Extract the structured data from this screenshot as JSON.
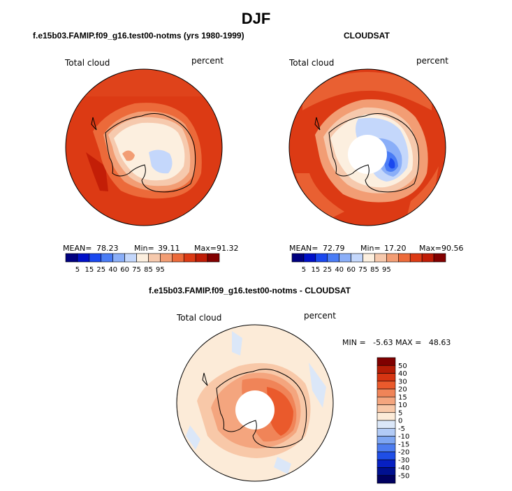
{
  "figure": {
    "title": "DJF"
  },
  "panels": {
    "left": {
      "title": "f.e15b03.FAMIP.f09_g16.test00-notms (yrs 1980-1999)",
      "variable": "Total cloud",
      "units": "percent",
      "mean_label": "MEAN=",
      "mean": "78.23",
      "min_label": "Min=",
      "min": "39.11",
      "max_label": "Max=",
      "max": "91.32"
    },
    "right": {
      "title": "CLOUDSAT",
      "variable": "Total cloud",
      "units": "percent",
      "mean_label": "MEAN=",
      "mean": "72.79",
      "min_label": "Min=",
      "min": "17.20",
      "max_label": "Max=",
      "max": "90.56"
    },
    "diff": {
      "title": "f.e15b03.FAMIP.f09_g16.test00-notms - CLOUDSAT",
      "variable": "Total cloud",
      "units": "percent",
      "minmax": "MIN =   -5.63 MAX =   48.63"
    }
  },
  "colorbar_abs": {
    "labels": [
      "5",
      "15",
      "25",
      "40",
      "60",
      "75",
      "85",
      "95"
    ],
    "colors": [
      "#00007f",
      "#0010c8",
      "#1a48ef",
      "#4a7cf5",
      "#8aaef8",
      "#c4d7fb",
      "#fcefdf",
      "#f6c9ad",
      "#f29d74",
      "#ec6a3a",
      "#dc3a14",
      "#c01c06",
      "#820000"
    ]
  },
  "colorbar_diff": {
    "labels": [
      "50",
      "40",
      "30",
      "20",
      "15",
      "10",
      "5",
      "0",
      "-5",
      "-10",
      "-15",
      "-20",
      "-30",
      "-40",
      "-50"
    ],
    "colors": [
      "#800000",
      "#b51c06",
      "#d63512",
      "#ea5a2c",
      "#f08458",
      "#f4a57e",
      "#f8c8a8",
      "#fcebd8",
      "#dbe7f8",
      "#b2cbf6",
      "#7ea6f2",
      "#4d7cef",
      "#1f4ee6",
      "#0720c2",
      "#001090",
      "#000060"
    ]
  }
}
